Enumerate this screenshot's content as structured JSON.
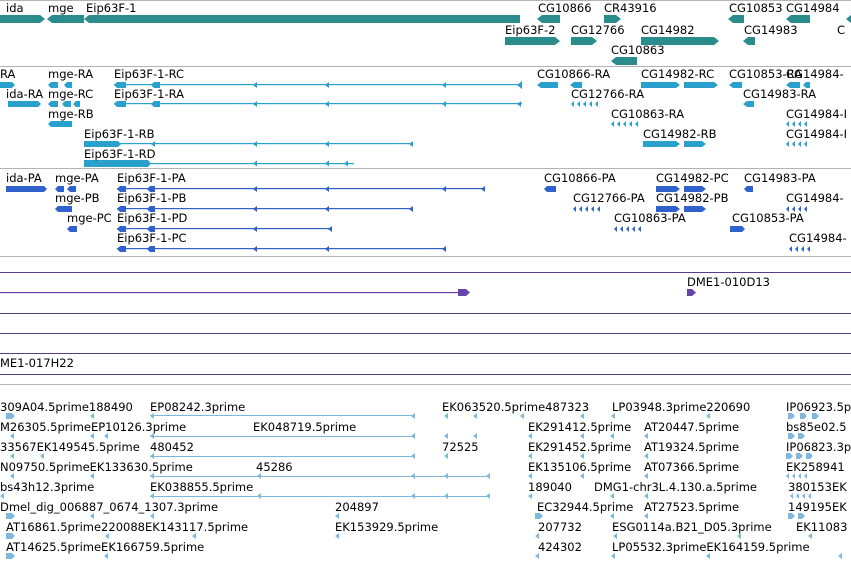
{
  "colors": {
    "gene": "#2a8c8c",
    "transcript": "#2aa0cc",
    "protein": "#2f62cc",
    "clone": "#6644aa",
    "est": "#7fb8dd",
    "separator": "#5a3d8a",
    "divider": "#b3b3b3"
  },
  "tracks": {
    "genes": {
      "features": [
        {
          "label": "ida"
        },
        {
          "label": "mge"
        },
        {
          "label": "Eip63F-1"
        },
        {
          "label": "CG10866"
        },
        {
          "label": "CR43916"
        },
        {
          "label": "CG10853"
        },
        {
          "label": "CG14984"
        },
        {
          "label": "C"
        },
        {
          "label": "Eip63F-2"
        },
        {
          "label": "CG12766"
        },
        {
          "label": "CG14982"
        },
        {
          "label": "CG14983"
        },
        {
          "label": "CG10863"
        }
      ]
    },
    "transcripts": {
      "features": [
        {
          "label": "RA"
        },
        {
          "label": "mge-RA"
        },
        {
          "label": "Eip63F-1-RC"
        },
        {
          "label": "CG10866-RA"
        },
        {
          "label": "CG14982-RC"
        },
        {
          "label": "CG10853-RA"
        },
        {
          "label": "CG14984-"
        },
        {
          "label": "ida-RA"
        },
        {
          "label": "mge-RC"
        },
        {
          "label": "Eip63F-1-RA"
        },
        {
          "label": "CG12766-RA"
        },
        {
          "label": "CG14983-RA"
        },
        {
          "label": "mge-RB"
        },
        {
          "label": "CG10863-RA"
        },
        {
          "label": "CG14984-I"
        },
        {
          "label": "Eip63F-1-RB"
        },
        {
          "label": "CG14982-RB"
        },
        {
          "label": "CG14984-I"
        },
        {
          "label": "Eip63F-1-RD"
        }
      ]
    },
    "proteins": {
      "features": [
        {
          "label": "ida-PA"
        },
        {
          "label": "mge-PA"
        },
        {
          "label": "Eip63F-1-PA"
        },
        {
          "label": "CG10866-PA"
        },
        {
          "label": "CG14982-PC"
        },
        {
          "label": "CG14983-PA"
        },
        {
          "label": "mge-PB"
        },
        {
          "label": "Eip63F-1-PB"
        },
        {
          "label": "CG12766-PA"
        },
        {
          "label": "CG14982-PB"
        },
        {
          "label": "CG14984-"
        },
        {
          "label": "mge-PC"
        },
        {
          "label": "Eip63F-1-PD"
        },
        {
          "label": "CG10863-PA"
        },
        {
          "label": "CG10853-PA"
        },
        {
          "label": "Eip63F-1-PC"
        },
        {
          "label": "CG14984-"
        }
      ]
    },
    "clones": {
      "features": [
        {
          "label": "DME1-010D13"
        },
        {
          "label": "ME1-017H22"
        }
      ]
    },
    "ests": {
      "features": [
        {
          "label": "309A04.5prime188490"
        },
        {
          "label": "EP08242.3prime"
        },
        {
          "label": "EK063520.5prime487323"
        },
        {
          "label": "LP03948.3prime220690"
        },
        {
          "label": "IP06923.5p"
        },
        {
          "label": "M26305.5primeEP10126.3prime"
        },
        {
          "label": "EK048719.5prime"
        },
        {
          "label": "EK291412.5prime"
        },
        {
          "label": "AT20447.5prime"
        },
        {
          "label": "bs85e02.5"
        },
        {
          "label": "33567EK149545.5prime"
        },
        {
          "label": "480452"
        },
        {
          "label": "72525"
        },
        {
          "label": "EK291452.5prime"
        },
        {
          "label": "AT19324.5prime"
        },
        {
          "label": "IP06823.3p"
        },
        {
          "label": "N09750.5primeEK133630.5prime"
        },
        {
          "label": "45286"
        },
        {
          "label": "EK135106.5prime"
        },
        {
          "label": "AT07366.5prime"
        },
        {
          "label": "EK258941"
        },
        {
          "label": "bs43h12.3prime"
        },
        {
          "label": "EK038855.5prime"
        },
        {
          "label": "189040"
        },
        {
          "label": "DMG1-chr3L.4.130.a.5prime"
        },
        {
          "label": "380153"
        },
        {
          "label": "EK"
        },
        {
          "label": "Dmel_dig_006887_0674_1307.3prime"
        },
        {
          "label": "204897"
        },
        {
          "label": "EC32944.5prime"
        },
        {
          "label": "AT27523.5prime"
        },
        {
          "label": "149195"
        },
        {
          "label": "EK"
        },
        {
          "label": "AT16861.5prime220088EK143117.5prime"
        },
        {
          "label": "EK153929.5prime"
        },
        {
          "label": "207732"
        },
        {
          "label": "ESG0114a.B21_D05.3prime"
        },
        {
          "label": "EK11083"
        },
        {
          "label": "AT14625.5primeEK166759.5prime"
        },
        {
          "label": "424302"
        },
        {
          "label": "LP05532.3primeEK164159.5prime"
        }
      ]
    }
  }
}
